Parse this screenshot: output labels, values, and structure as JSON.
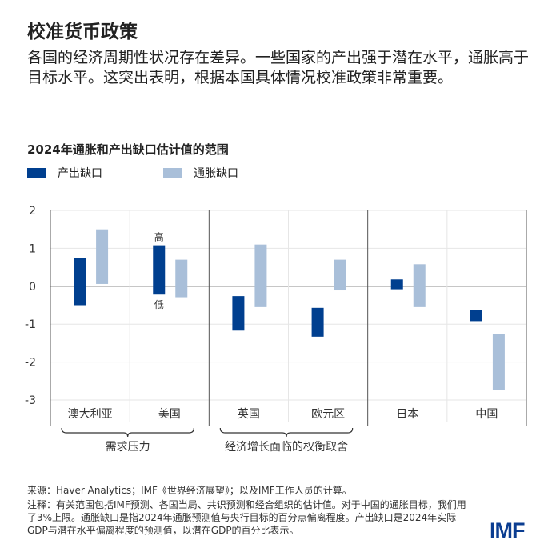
{
  "header": {
    "title": "校准货币政策",
    "description": "各国的经济周期性状况存在差异。一些国家的产出强于潜在水平，通胀高于目标水平。这突出表明，根据本国具体情况校准政策非常重要。"
  },
  "colors": {
    "output_gap": "#003f8f",
    "inflation_gap": "#a9bfd9"
  },
  "chart_data": {
    "type": "floating-bar",
    "title": "2024年通胀和产出缺口估计值的范围",
    "legend": [
      "产出缺口",
      "通胀缺口"
    ],
    "legend_placement": "top-left",
    "categories": [
      "澳大利亚",
      "美国",
      "英国",
      "欧元区",
      "日本",
      "中国"
    ],
    "groups": [
      {
        "label": "需求压力",
        "categories": [
          "澳大利亚",
          "美国"
        ]
      },
      {
        "label": "经济增长面临的权衡取舍",
        "categories": [
          "英国",
          "欧元区"
        ]
      }
    ],
    "ylim": [
      -3,
      2
    ],
    "yticks": [
      "2",
      "1",
      "0",
      "-1",
      "-2",
      "-3"
    ],
    "grid": true,
    "annotations": {
      "high": "高",
      "low": "低"
    },
    "series": [
      {
        "name": "产出缺口",
        "ranges": [
          [
            -0.5,
            0.75
          ],
          [
            -0.22,
            1.08
          ],
          [
            -1.17,
            -0.26
          ],
          [
            -1.33,
            -0.57
          ],
          [
            -0.08,
            0.18
          ],
          [
            -0.92,
            -0.63
          ]
        ]
      },
      {
        "name": "通胀缺口",
        "ranges": [
          [
            0.06,
            1.5
          ],
          [
            -0.29,
            0.7
          ],
          [
            -0.55,
            1.1
          ],
          [
            -0.11,
            0.7
          ],
          [
            -0.55,
            0.58
          ],
          [
            -2.73,
            -1.26
          ]
        ]
      }
    ]
  },
  "footer": {
    "source": "来源：Haver Analytics；IMF《世界经济展望》；以及IMF工作人员的计算。",
    "note": "注释：有关范围包括IMF预测、各国当局、共识预测和经合组织的估计值。对于中国的通胀目标，我们用了3%上限。通胀缺口是指2024年通胀预测值与央行目标的百分点偏离程度。产出缺口是2024年实际GDP与潜在水平偏离程度的预测值，以潜在GDP的百分比表示。",
    "logo": "IMF"
  }
}
